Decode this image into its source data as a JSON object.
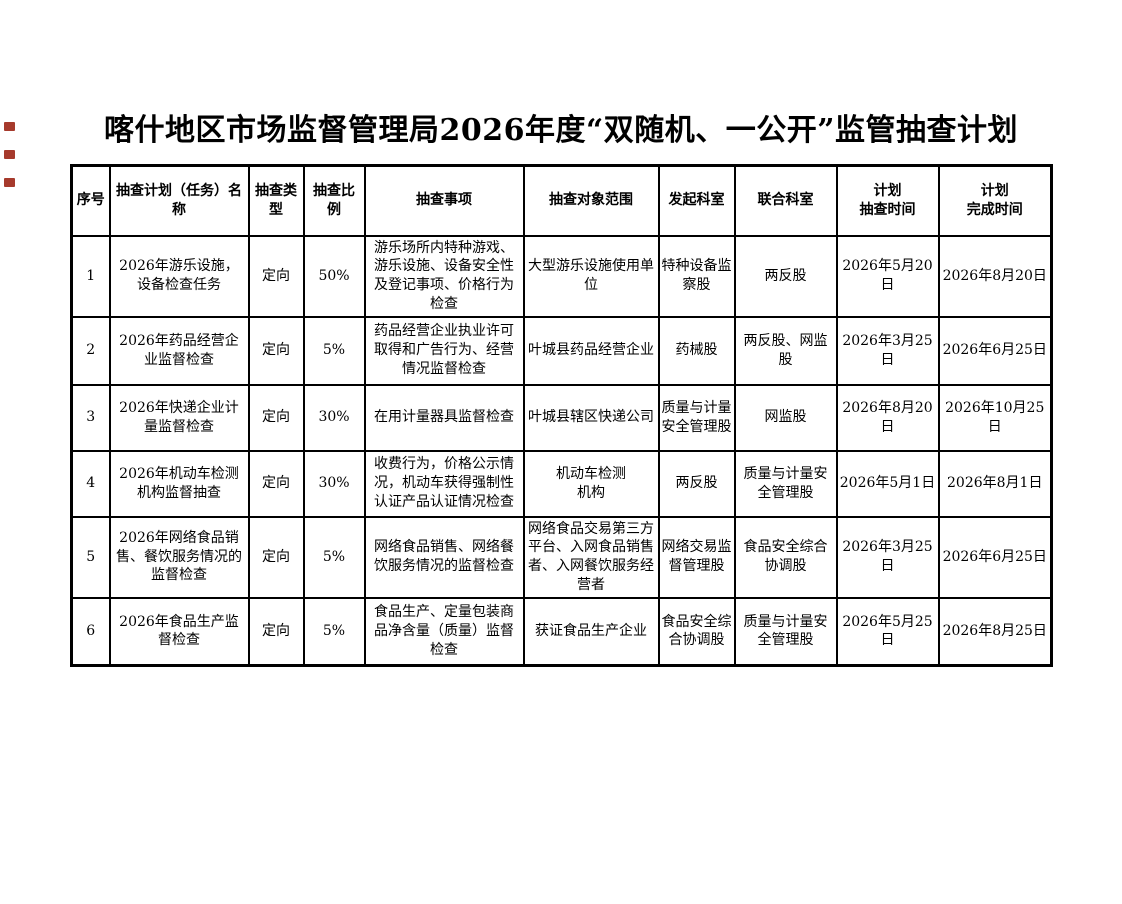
{
  "page": {
    "title": "喀什地区市场监督管理局2026年度“双随机、一公开”监管抽查计划"
  },
  "colors": {
    "background": "#ffffff",
    "table_border": "#000000",
    "text": "#000000",
    "margin_mark_red": "#a63a2c"
  },
  "table": {
    "header": [
      "序号",
      "抽查计划（任务）名称",
      "抽查类型",
      "抽查比例",
      "抽查事项",
      "抽查对象范围",
      "发起科室",
      "联合科室",
      "计划\n抽查时间",
      "计划\n完成时间"
    ],
    "rows": [
      [
        "1",
        "2026年游乐设施，设备检查任务",
        "定向",
        "50%",
        "游乐场所内特种游戏、游乐设施、设备安全性及登记事项、价格行为检查",
        "大型游乐设施使用单位",
        "特种设备监察股",
        "两反股",
        "2026年5月20日",
        "2026年8月20日"
      ],
      [
        "2",
        "2026年药品经营企业监督检查",
        "定向",
        "5%",
        "药品经营企业执业许可取得和广告行为、经营情况监督检查",
        "叶城县药品经营企业",
        "药械股",
        "两反股、网监股",
        "2026年3月25日",
        "2026年6月25日"
      ],
      [
        "3",
        "2026年快递企业计量监督检查",
        "定向",
        "30%",
        "在用计量器具监督检查",
        "叶城县辖区快递公司",
        "质量与计量安全管理股",
        "网监股",
        "2026年8月20日",
        "2026年10月25日"
      ],
      [
        "4",
        "2026年机动车检测机构监督抽查",
        "定向",
        "30%",
        "收费行为，价格公示情况，机动车获得强制性认证产品认证情况检查",
        "机动车检测\n机构",
        "两反股",
        "质量与计量安全管理股",
        "2026年5月1日",
        "2026年8月1日"
      ],
      [
        "5",
        "2026年网络食品销售、餐饮服务情况的监督检查",
        "定向",
        "5%",
        "网络食品销售、网络餐饮服务情况的监督检查",
        "网络食品交易第三方平台、入网食品销售者、入网餐饮服务经营者",
        "网络交易监督管理股",
        "食品安全综合协调股",
        "2026年3月25日",
        "2026年6月25日"
      ],
      [
        "6",
        "2026年食品生产监督检查",
        "定向",
        "5%",
        "食品生产、定量包装商品净含量（质量）监督检查",
        "获证食品生产企业",
        "食品安全综合协调股",
        "质量与计量安全管理股",
        "2026年5月25日",
        "2026年8月25日"
      ]
    ]
  }
}
